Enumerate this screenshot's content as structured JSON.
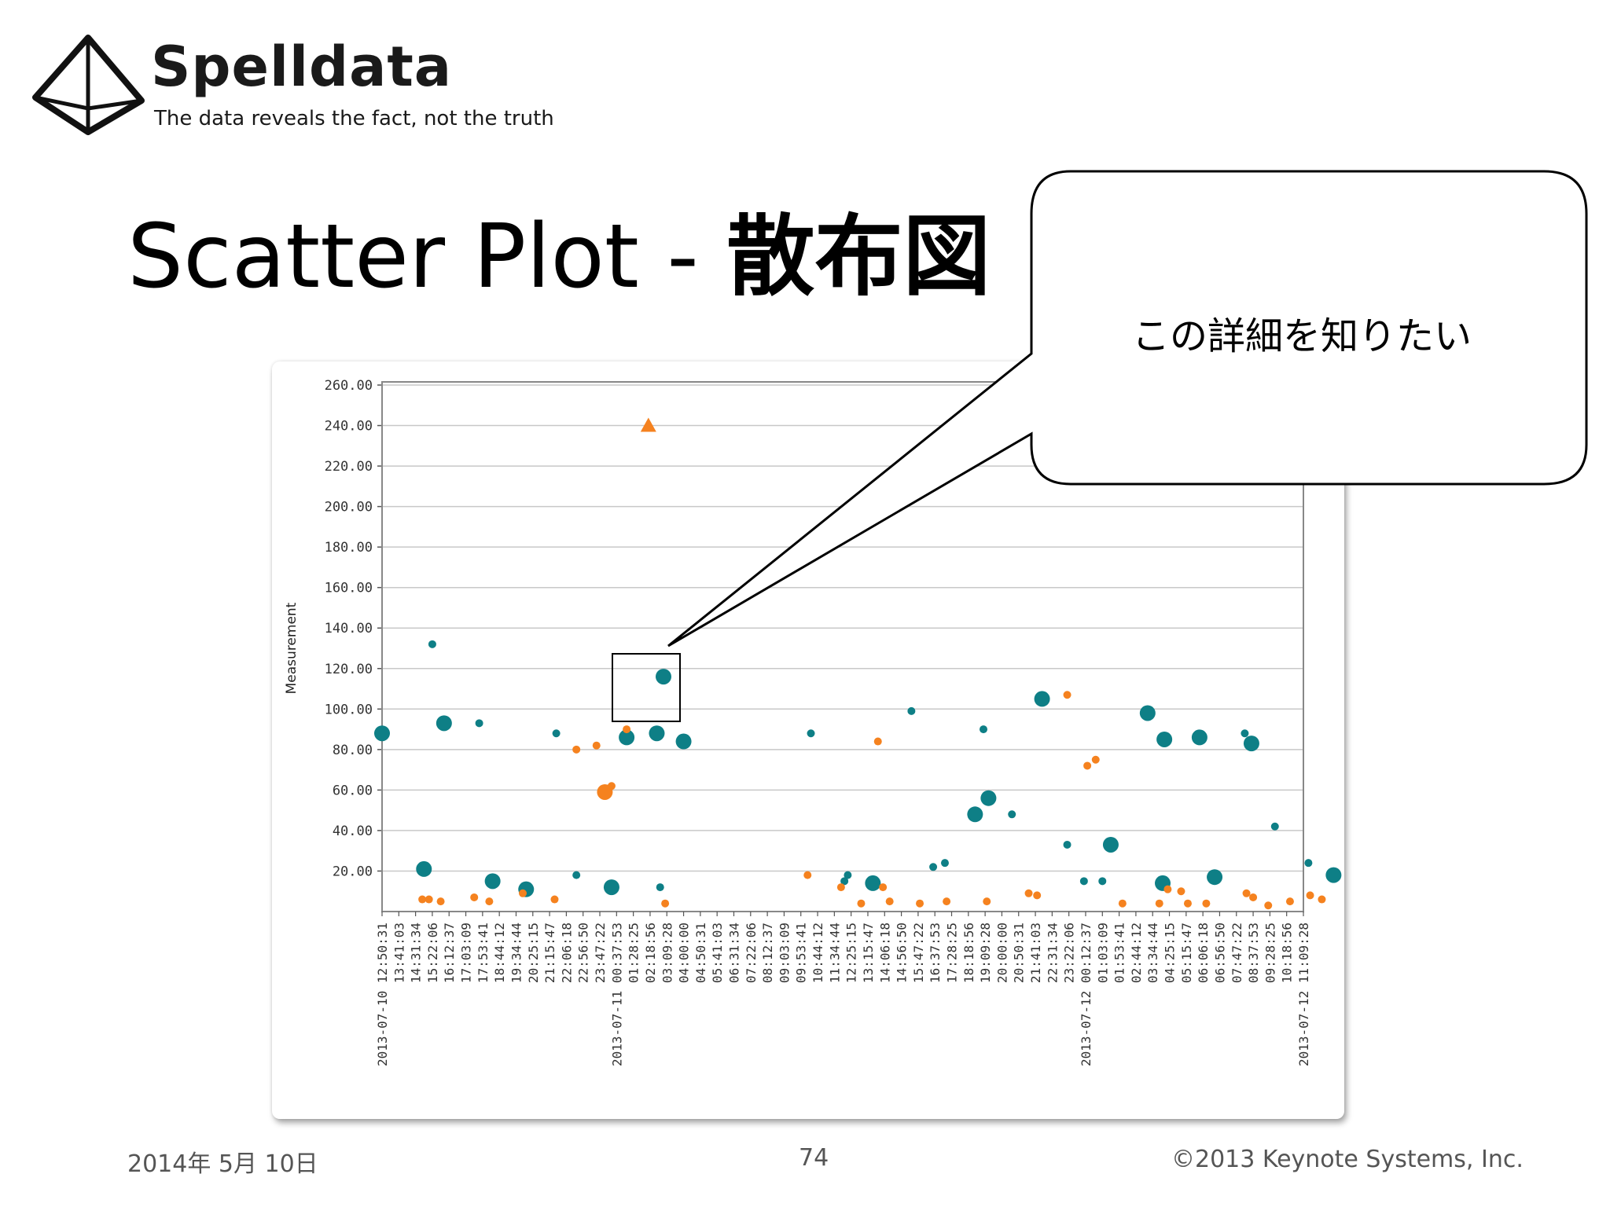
{
  "logo": {
    "name": "Spelldata",
    "tagline": "The data reveals the fact, not the truth"
  },
  "slide": {
    "title_en": "Scatter Plot - ",
    "title_jp": "散布図"
  },
  "callout": {
    "text": "この詳細を知りたい"
  },
  "footer": {
    "date": "2014年 5月 10日",
    "page": "74",
    "copyright": "©2013 Keynote Systems, Inc."
  },
  "colors": {
    "teal": "#0e7f86",
    "orange": "#f5821f",
    "grid": "#c8c8c8"
  },
  "chart_data": {
    "type": "scatter",
    "ylabel": "Measurement",
    "ylim": [
      0,
      260
    ],
    "grid": true,
    "ytick_labels": [
      "20.00",
      "40.00",
      "60.00",
      "80.00",
      "100.00",
      "120.00",
      "140.00",
      "160.00",
      "180.00",
      "200.00",
      "220.00",
      "240.00",
      "260.00"
    ],
    "x_labels": [
      "2013-07-10 12:50:31",
      "13:41:03",
      "14:31:34",
      "15:22:06",
      "16:12:37",
      "17:03:09",
      "17:53:41",
      "18:44:12",
      "19:34:44",
      "20:25:15",
      "21:15:47",
      "22:06:18",
      "22:56:50",
      "23:47:22",
      "2013-07-11 00:37:53",
      "01:28:25",
      "02:18:56",
      "03:09:28",
      "04:00:00",
      "04:50:31",
      "05:41:03",
      "06:31:34",
      "07:22:06",
      "08:12:37",
      "09:03:09",
      "09:53:41",
      "10:44:12",
      "11:34:44",
      "12:25:15",
      "13:15:47",
      "14:06:18",
      "14:56:50",
      "15:47:22",
      "16:37:53",
      "17:28:25",
      "18:18:56",
      "19:09:28",
      "20:00:00",
      "20:50:31",
      "21:41:03",
      "22:31:34",
      "23:22:06",
      "2013-07-12 00:12:37",
      "01:03:09",
      "01:53:41",
      "02:44:12",
      "03:34:44",
      "04:25:15",
      "05:15:47",
      "06:06:18",
      "06:56:50",
      "07:47:22",
      "08:37:53",
      "09:28:25",
      "10:18:56",
      "2013-07-12 11:09:28"
    ],
    "series": [
      {
        "color": "teal",
        "points": [
          {
            "x": 0.0,
            "y": 88,
            "size": "large"
          },
          {
            "x": 2.5,
            "y": 21,
            "size": "large"
          },
          {
            "x": 3.0,
            "y": 132,
            "size": "small"
          },
          {
            "x": 3.7,
            "y": 93,
            "size": "large"
          },
          {
            "x": 5.8,
            "y": 93,
            "size": "small"
          },
          {
            "x": 6.6,
            "y": 15,
            "size": "large"
          },
          {
            "x": 8.6,
            "y": 11,
            "size": "large"
          },
          {
            "x": 10.4,
            "y": 88,
            "size": "small"
          },
          {
            "x": 11.6,
            "y": 18,
            "size": "small"
          },
          {
            "x": 13.7,
            "y": 12,
            "size": "large"
          },
          {
            "x": 14.6,
            "y": 86,
            "size": "large"
          },
          {
            "x": 16.4,
            "y": 88,
            "size": "large"
          },
          {
            "x": 16.6,
            "y": 12,
            "size": "small"
          },
          {
            "x": 16.8,
            "y": 116,
            "size": "large"
          },
          {
            "x": 18.0,
            "y": 84,
            "size": "large"
          },
          {
            "x": 25.6,
            "y": 88,
            "size": "small"
          },
          {
            "x": 27.6,
            "y": 15,
            "size": "small"
          },
          {
            "x": 27.8,
            "y": 18,
            "size": "small"
          },
          {
            "x": 29.3,
            "y": 14,
            "size": "large"
          },
          {
            "x": 31.6,
            "y": 99,
            "size": "small"
          },
          {
            "x": 32.9,
            "y": 22,
            "size": "small"
          },
          {
            "x": 33.6,
            "y": 24,
            "size": "small"
          },
          {
            "x": 35.4,
            "y": 48,
            "size": "large"
          },
          {
            "x": 35.9,
            "y": 90,
            "size": "small"
          },
          {
            "x": 36.2,
            "y": 56,
            "size": "large"
          },
          {
            "x": 37.6,
            "y": 48,
            "size": "small"
          },
          {
            "x": 39.4,
            "y": 105,
            "size": "large"
          },
          {
            "x": 40.9,
            "y": 33,
            "size": "small"
          },
          {
            "x": 41.9,
            "y": 15,
            "size": "small"
          },
          {
            "x": 43.0,
            "y": 15,
            "size": "small"
          },
          {
            "x": 43.5,
            "y": 33,
            "size": "large"
          },
          {
            "x": 45.7,
            "y": 98,
            "size": "large"
          },
          {
            "x": 46.6,
            "y": 14,
            "size": "large"
          },
          {
            "x": 46.7,
            "y": 85,
            "size": "large"
          },
          {
            "x": 48.8,
            "y": 86,
            "size": "large"
          },
          {
            "x": 49.7,
            "y": 17,
            "size": "large"
          },
          {
            "x": 51.5,
            "y": 88,
            "size": "small"
          },
          {
            "x": 51.9,
            "y": 83,
            "size": "large"
          },
          {
            "x": 53.3,
            "y": 42,
            "size": "small"
          },
          {
            "x": 55.3,
            "y": 24,
            "size": "small"
          },
          {
            "x": 56.8,
            "y": 18,
            "size": "large"
          }
        ]
      },
      {
        "color": "orange",
        "points": [
          {
            "x": 2.4,
            "y": 6,
            "size": "small"
          },
          {
            "x": 2.8,
            "y": 6,
            "size": "small"
          },
          {
            "x": 3.5,
            "y": 5,
            "size": "small"
          },
          {
            "x": 5.5,
            "y": 7,
            "size": "small"
          },
          {
            "x": 6.4,
            "y": 5,
            "size": "small"
          },
          {
            "x": 8.4,
            "y": 9,
            "size": "small"
          },
          {
            "x": 10.3,
            "y": 6,
            "size": "small"
          },
          {
            "x": 11.6,
            "y": 80,
            "size": "small"
          },
          {
            "x": 12.8,
            "y": 82,
            "size": "small"
          },
          {
            "x": 13.3,
            "y": 59,
            "size": "large"
          },
          {
            "x": 13.7,
            "y": 62,
            "size": "small"
          },
          {
            "x": 14.6,
            "y": 90,
            "size": "small"
          },
          {
            "x": 15.9,
            "y": 240,
            "size": "triangle"
          },
          {
            "x": 16.9,
            "y": 4,
            "size": "small"
          },
          {
            "x": 25.4,
            "y": 18,
            "size": "small"
          },
          {
            "x": 27.4,
            "y": 12,
            "size": "small"
          },
          {
            "x": 28.6,
            "y": 4,
            "size": "small"
          },
          {
            "x": 29.6,
            "y": 84,
            "size": "small"
          },
          {
            "x": 29.9,
            "y": 12,
            "size": "small"
          },
          {
            "x": 30.3,
            "y": 5,
            "size": "small"
          },
          {
            "x": 32.1,
            "y": 4,
            "size": "small"
          },
          {
            "x": 33.7,
            "y": 5,
            "size": "small"
          },
          {
            "x": 36.1,
            "y": 5,
            "size": "small"
          },
          {
            "x": 38.6,
            "y": 9,
            "size": "small"
          },
          {
            "x": 39.1,
            "y": 8,
            "size": "small"
          },
          {
            "x": 40.9,
            "y": 107,
            "size": "small"
          },
          {
            "x": 42.1,
            "y": 72,
            "size": "small"
          },
          {
            "x": 42.6,
            "y": 75,
            "size": "small"
          },
          {
            "x": 44.2,
            "y": 4,
            "size": "small"
          },
          {
            "x": 46.4,
            "y": 4,
            "size": "small"
          },
          {
            "x": 46.9,
            "y": 11,
            "size": "small"
          },
          {
            "x": 47.7,
            "y": 10,
            "size": "small"
          },
          {
            "x": 48.1,
            "y": 4,
            "size": "small"
          },
          {
            "x": 49.2,
            "y": 4,
            "size": "small"
          },
          {
            "x": 51.6,
            "y": 9,
            "size": "small"
          },
          {
            "x": 52.0,
            "y": 7,
            "size": "small"
          },
          {
            "x": 52.9,
            "y": 3,
            "size": "small"
          },
          {
            "x": 54.2,
            "y": 5,
            "size": "small"
          },
          {
            "x": 55.4,
            "y": 8,
            "size": "small"
          },
          {
            "x": 56.1,
            "y": 6,
            "size": "small"
          }
        ]
      }
    ],
    "highlighted_point": {
      "x": 16.8,
      "y": 116
    }
  }
}
